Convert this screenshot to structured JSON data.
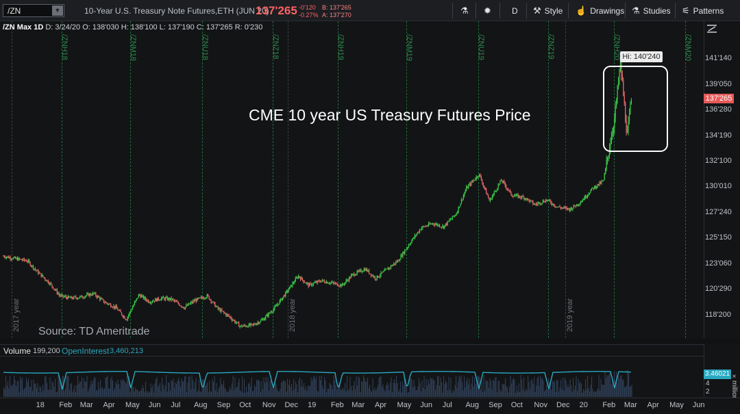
{
  "toolbar": {
    "symbol": "/ZN",
    "description": "10-Year U.S. Treasury Note Futures,ETH (JUN 20)",
    "last_price": "137'265",
    "net_change": "-0'120",
    "pct_change": "-0.27%",
    "bid": "B: 137'265",
    "ask": "A: 137'270",
    "aggregation": "D",
    "style_label": "Style",
    "drawings_label": "Drawings",
    "studies_label": "Studies",
    "patterns_label": "Patterns"
  },
  "header": {
    "title": "/ZN Max 1D",
    "date": "D: 3/24/20",
    "open": "O: 138'030",
    "high": "H: 138'100",
    "low": "L: 137'190",
    "close": "C: 137'265",
    "range": "R: 0'230"
  },
  "annotation": "CME 10 year US Treasury Futures Price",
  "source": "Source: TD Ameritrade",
  "high_label": "Hi: 140'240",
  "price_axis": [
    "141'140",
    "139'050",
    "136'280",
    "134'190",
    "132'100",
    "130'010",
    "127'240",
    "125'150",
    "123'060",
    "120'290",
    "118'200"
  ],
  "expirations": [
    "/ZNH18",
    "/ZNM18",
    "/ZNU18",
    "/ZNZ18",
    "/ZNH19",
    "/ZNM19",
    "/ZNU19",
    "/ZNZ19",
    "/ZNH20",
    "/ZNM20"
  ],
  "year_markers": [
    "2017 year",
    "2018 year",
    "2019 year"
  ],
  "volume_row": {
    "volume_label": "Volume",
    "volume_value": "199,200",
    "oi_label": "OpenInterest",
    "oi_value": "3,460,213"
  },
  "volume_axis": {
    "oi_tag": "3.46021",
    "ticks": [
      "4",
      "2"
    ],
    "unit": "×million"
  },
  "time_axis": [
    "18",
    "Feb",
    "Mar",
    "Apr",
    "May",
    "Jun",
    "Jul",
    "Aug",
    "Sep",
    "Oct",
    "Nov",
    "Dec",
    "19",
    "Feb",
    "Mar",
    "Apr",
    "May",
    "Jun",
    "Jul",
    "Aug",
    "Sep",
    "Oct",
    "Nov",
    "Dec",
    "20",
    "Feb",
    "Mar",
    "Apr",
    "May",
    "Jun"
  ],
  "colors": {
    "up": "#3ad24a",
    "down": "#e86b6b",
    "oi_line": "#29a9c0",
    "volume_bar": "#2f3f57"
  },
  "chart_data": {
    "type": "candlestick",
    "ylim": [
      117,
      143
    ],
    "x_start": "2017-12",
    "x_end": "2020-06",
    "points": [
      [
        "2017-12-01",
        124.2
      ],
      [
        "2017-12-15",
        124.0
      ],
      [
        "2018-01-02",
        123.8
      ],
      [
        "2018-01-15",
        122.9
      ],
      [
        "2018-02-01",
        121.9
      ],
      [
        "2018-02-15",
        120.8
      ],
      [
        "2018-03-01",
        120.6
      ],
      [
        "2018-03-15",
        120.7
      ],
      [
        "2018-04-01",
        121.0
      ],
      [
        "2018-04-15",
        120.3
      ],
      [
        "2018-05-01",
        119.8
      ],
      [
        "2018-05-15",
        118.8
      ],
      [
        "2018-06-01",
        120.9
      ],
      [
        "2018-06-15",
        120.3
      ],
      [
        "2018-07-01",
        120.6
      ],
      [
        "2018-07-15",
        120.5
      ],
      [
        "2018-08-01",
        119.8
      ],
      [
        "2018-08-15",
        120.4
      ],
      [
        "2018-09-01",
        120.8
      ],
      [
        "2018-09-15",
        119.7
      ],
      [
        "2018-10-01",
        119.0
      ],
      [
        "2018-10-15",
        118.2
      ],
      [
        "2018-11-01",
        118.3
      ],
      [
        "2018-11-15",
        118.8
      ],
      [
        "2018-12-01",
        119.8
      ],
      [
        "2018-12-15",
        121.0
      ],
      [
        "2019-01-01",
        122.5
      ],
      [
        "2019-01-15",
        121.7
      ],
      [
        "2019-02-01",
        122.1
      ],
      [
        "2019-02-15",
        121.9
      ],
      [
        "2019-03-01",
        121.7
      ],
      [
        "2019-03-15",
        122.6
      ],
      [
        "2019-04-01",
        123.1
      ],
      [
        "2019-04-15",
        122.3
      ],
      [
        "2019-05-01",
        123.1
      ],
      [
        "2019-05-15",
        123.8
      ],
      [
        "2019-06-01",
        125.4
      ],
      [
        "2019-06-15",
        126.6
      ],
      [
        "2019-07-01",
        127.0
      ],
      [
        "2019-07-15",
        126.7
      ],
      [
        "2019-08-01",
        127.8
      ],
      [
        "2019-08-15",
        130.0
      ],
      [
        "2019-09-01",
        131.2
      ],
      [
        "2019-09-15",
        128.9
      ],
      [
        "2019-10-01",
        130.7
      ],
      [
        "2019-10-15",
        129.4
      ],
      [
        "2019-11-01",
        129.2
      ],
      [
        "2019-11-15",
        128.6
      ],
      [
        "2019-12-01",
        129.0
      ],
      [
        "2019-12-15",
        128.4
      ],
      [
        "2020-01-01",
        128.2
      ],
      [
        "2020-01-15",
        128.8
      ],
      [
        "2020-02-01",
        130.0
      ],
      [
        "2020-02-15",
        130.6
      ],
      [
        "2020-03-01",
        136.0
      ],
      [
        "2020-03-09",
        140.7
      ],
      [
        "2020-03-18",
        134.4
      ],
      [
        "2020-03-24",
        137.8
      ]
    ],
    "high": 140.75,
    "oi_baseline": 3.46
  }
}
